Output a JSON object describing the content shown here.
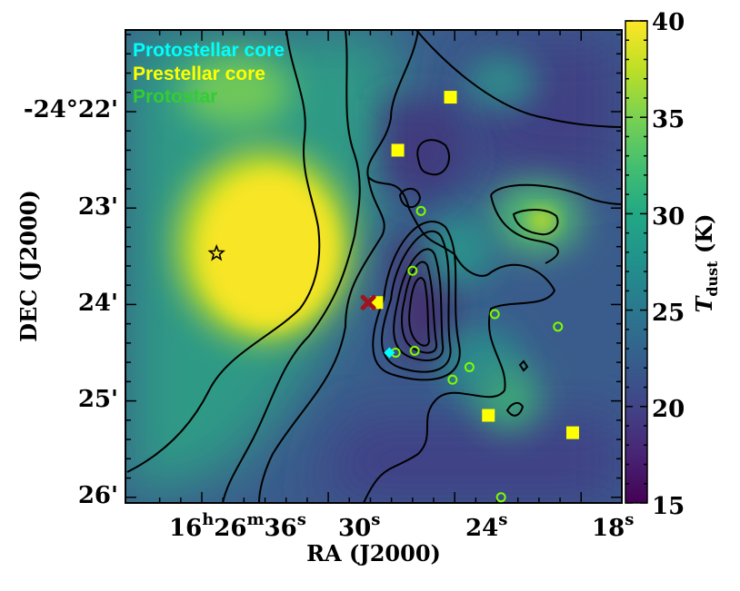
{
  "chart_data": {
    "type": "heatmap",
    "title": "",
    "xlabel": "RA (J2000)",
    "ylabel": "DEC (J2000)",
    "x_ticks": [
      {
        "h": "16",
        "m": "26",
        "s": "36"
      },
      {
        "s": "30"
      },
      {
        "s": "24"
      },
      {
        "s": "18"
      }
    ],
    "y_ticks": [
      "-24°22'",
      "23'",
      "24'",
      "25'",
      "26'"
    ],
    "colorbar": {
      "label_main": "T",
      "label_sub": "dust",
      "label_unit": " (K)",
      "ticks": [
        "40",
        "35",
        "30",
        "25",
        "20",
        "15"
      ],
      "range": [
        15,
        40
      ],
      "colormap": "viridis"
    },
    "legend": {
      "placement": "top-left",
      "entries": [
        {
          "label": "Protostellar core",
          "color": "#00ffff"
        },
        {
          "label": "Prestellar core",
          "color": "#ffff00"
        },
        {
          "label": "Protostar",
          "color": "#32cd32"
        }
      ]
    },
    "marker_kinds": {
      "prestellar_core": {
        "shape": "square",
        "color": "#ffff00"
      },
      "protostar": {
        "shape": "open-circle",
        "color": "#7cfc00"
      },
      "protostellar_core": {
        "shape": "diamond",
        "color": "#00ffff"
      },
      "source_x": {
        "shape": "x-cross",
        "color": "#a0141e"
      },
      "star": {
        "shape": "open-star",
        "color": "#000000"
      }
    },
    "prestellar_cores": [
      {
        "ra_s": 24.2,
        "dec_min": 21.85
      },
      {
        "ra_s": 26.7,
        "dec_min": 22.4
      },
      {
        "ra_s": 27.7,
        "dec_min": 23.98
      },
      {
        "ra_s": 22.4,
        "dec_min": 25.15
      },
      {
        "ra_s": 18.4,
        "dec_min": 25.33
      }
    ],
    "protostars": [
      {
        "ra_s": 25.6,
        "dec_min": 23.03
      },
      {
        "ra_s": 26.0,
        "dec_min": 23.65
      },
      {
        "ra_s": 22.1,
        "dec_min": 24.1
      },
      {
        "ra_s": 26.8,
        "dec_min": 24.5
      },
      {
        "ra_s": 25.9,
        "dec_min": 24.48
      },
      {
        "ra_s": 23.3,
        "dec_min": 24.65
      },
      {
        "ra_s": 24.1,
        "dec_min": 24.78
      },
      {
        "ra_s": 19.1,
        "dec_min": 24.23
      },
      {
        "ra_s": 21.8,
        "dec_min": 26.0
      }
    ],
    "protostellar_cores": [
      {
        "ra_s": 27.1,
        "dec_min": 24.5
      }
    ],
    "x_marks": [
      {
        "ra_s": 28.1,
        "dec_min": 23.98
      }
    ],
    "stars": [
      {
        "ra_s": 35.3,
        "dec_min": 23.47
      }
    ]
  }
}
